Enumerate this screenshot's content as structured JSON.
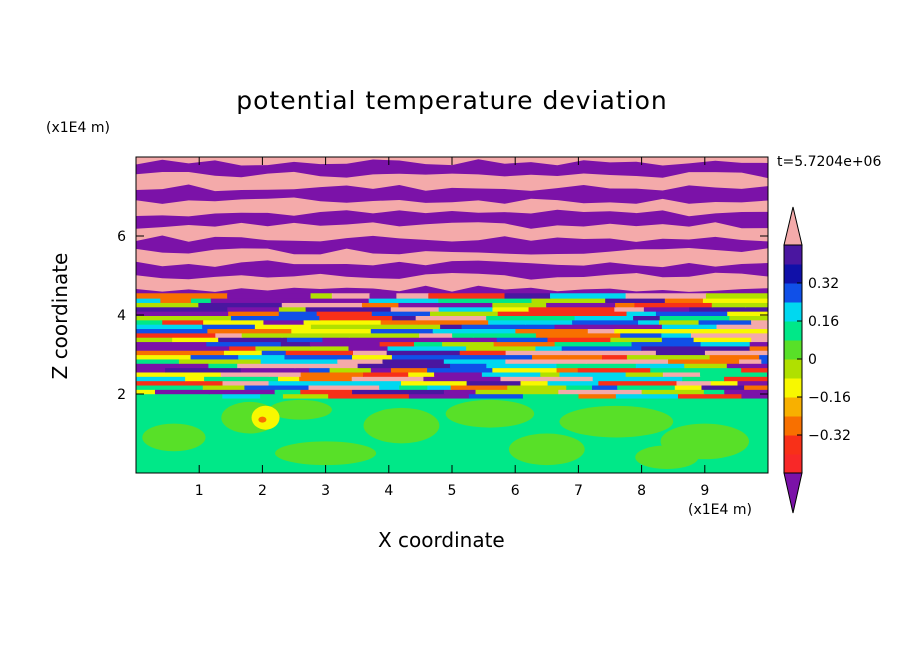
{
  "chart_data": {
    "type": "heatmap",
    "title": "potential temperature deviation",
    "xlabel": "X coordinate",
    "ylabel": "Z coordinate",
    "x_unit": "(x1E4 m)",
    "z_unit": "(x1E4 m)",
    "time_label": "t=5.7204e+06",
    "xlim": [
      0,
      10
    ],
    "ylim": [
      0,
      8
    ],
    "xticks": [
      "1",
      "2",
      "3",
      "4",
      "5",
      "6",
      "7",
      "8",
      "9"
    ],
    "yticks": [
      "2",
      "4",
      "6"
    ],
    "colorbar": {
      "tick_labels": [
        "0.32",
        "0.16",
        "0",
        "−0.16",
        "−0.32"
      ],
      "tick_values": [
        0.32,
        0.16,
        0,
        -0.16,
        -0.32
      ],
      "levels_colors": [
        "#7b12a8",
        "#4a16a0",
        "#1010a8",
        "#1050e8",
        "#00d8f0",
        "#00e888",
        "#58e028",
        "#b0e000",
        "#f8f800",
        "#f8b000",
        "#f87000",
        "#f83018",
        "#f82828",
        "#f4aaaa"
      ]
    },
    "regions": [
      {
        "z_range": [
          0,
          1.9
        ],
        "pattern": "green-cyan mottled, near-zero deviation"
      },
      {
        "z_range": [
          1.9,
          4.5
        ],
        "pattern": "turbulent multicolored layers"
      },
      {
        "z_range": [
          4.5,
          8
        ],
        "pattern": "alternating pink and purple horizontal bands"
      }
    ]
  }
}
